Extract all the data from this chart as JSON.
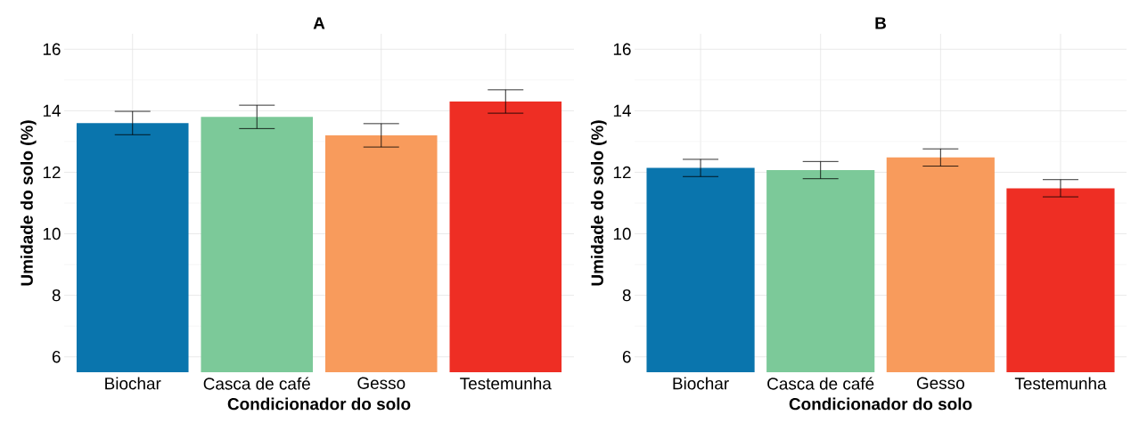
{
  "chart_data": [
    {
      "type": "bar",
      "title": "A",
      "xlabel": "Condicionador do solo",
      "ylabel": "Umidade do solo (%)",
      "categories": [
        "Biochar",
        "Casca de café",
        "Gesso",
        "Testemunha"
      ],
      "values": [
        13.6,
        13.8,
        13.2,
        14.3
      ],
      "errors": [
        0.38,
        0.38,
        0.38,
        0.38
      ],
      "colors": [
        "#0a75ad",
        "#7cc999",
        "#f89b5c",
        "#ee2e24"
      ],
      "ylim": [
        5.5,
        16.5
      ],
      "yticks": [
        6,
        8,
        10,
        12,
        14,
        16
      ],
      "grid": true
    },
    {
      "type": "bar",
      "title": "B",
      "xlabel": "Condicionador do solo",
      "ylabel": "Umidade do solo (%)",
      "categories": [
        "Biochar",
        "Casca de café",
        "Gesso",
        "Testemunha"
      ],
      "values": [
        12.14,
        12.07,
        12.48,
        11.48
      ],
      "errors": [
        0.28,
        0.28,
        0.28,
        0.28
      ],
      "colors": [
        "#0a75ad",
        "#7cc999",
        "#f89b5c",
        "#ee2e24"
      ],
      "ylim": [
        5.5,
        16.5
      ],
      "yticks": [
        6,
        8,
        10,
        12,
        14,
        16
      ],
      "grid": true
    }
  ]
}
